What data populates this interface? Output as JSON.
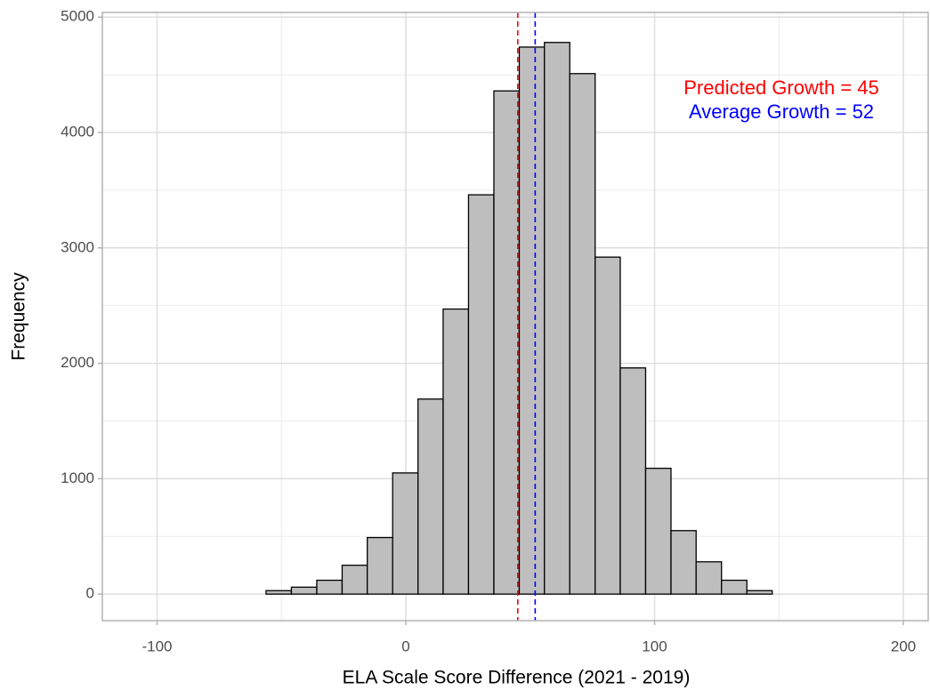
{
  "chart_data": {
    "type": "histogram",
    "xlabel": "ELA Scale Score Difference (2021 - 2019)",
    "ylabel": "Frequency",
    "bins": [
      -107.0,
      -96.8,
      -86.7,
      -76.5,
      -66.3,
      -56.2,
      -46.0,
      -35.8,
      -25.6,
      -15.5,
      -5.3,
      4.9,
      15.0,
      25.2,
      35.4,
      45.6,
      55.7,
      65.9,
      76.1,
      86.2,
      96.4,
      106.6,
      116.7,
      126.9,
      137.1,
      147.3,
      157.4,
      167.6,
      177.8,
      187.9,
      198.1
    ],
    "counts": [
      0,
      0,
      0,
      0,
      0,
      30,
      60,
      120,
      250,
      490,
      1050,
      1690,
      2470,
      3460,
      4360,
      4740,
      4780,
      4510,
      2920,
      1960,
      1090,
      550,
      280,
      120,
      30,
      0,
      0,
      0,
      0,
      0
    ],
    "color": "#bebebe",
    "edgecolor": "#000000",
    "xlim": [
      -122,
      210
    ],
    "ylim": [
      -230,
      5040
    ],
    "xticks": [
      -100,
      0,
      100,
      200
    ],
    "yticks": [
      0,
      1000,
      2000,
      3000,
      4000,
      5000
    ],
    "xminor": [
      -50,
      50,
      150
    ],
    "yminor": [
      500,
      1500,
      2500,
      3500,
      4500
    ],
    "grid": true,
    "vlines": [
      {
        "value": 45,
        "color": "#ff0000"
      },
      {
        "value": 52,
        "color": "#0000ff"
      }
    ],
    "annotations": [
      {
        "text": "Predicted Growth = 45",
        "color": "#ff0000"
      },
      {
        "text": "Average Growth = 52",
        "color": "#0000ff"
      }
    ]
  }
}
